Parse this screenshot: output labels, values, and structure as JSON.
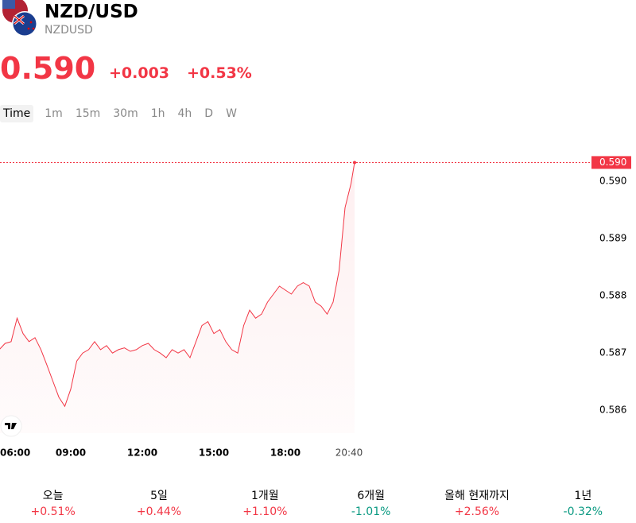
{
  "header": {
    "title": "NZD/USD",
    "symbol": "NZDUSD",
    "price": "0.590",
    "change": "+0.003",
    "change_pct": "+0.53%"
  },
  "tabs": [
    "Time",
    "1m",
    "15m",
    "30m",
    "1h",
    "4h",
    "D",
    "W"
  ],
  "chart_data": {
    "type": "line",
    "x": [
      "06:00",
      "06:15",
      "06:30",
      "06:45",
      "07:00",
      "07:15",
      "07:30",
      "07:45",
      "08:00",
      "08:15",
      "08:30",
      "08:45",
      "09:00",
      "09:15",
      "09:30",
      "09:45",
      "10:00",
      "10:15",
      "10:30",
      "10:45",
      "11:00",
      "11:15",
      "11:30",
      "11:45",
      "12:00",
      "12:15",
      "12:30",
      "12:45",
      "13:00",
      "13:15",
      "13:30",
      "13:45",
      "14:00",
      "14:15",
      "14:30",
      "14:45",
      "15:00",
      "15:15",
      "15:30",
      "15:45",
      "16:00",
      "16:15",
      "16:30",
      "16:45",
      "17:00",
      "17:15",
      "17:30",
      "17:45",
      "18:00",
      "18:15",
      "18:30",
      "18:45",
      "19:00",
      "19:15",
      "19:30",
      "19:45",
      "20:00",
      "20:15",
      "20:30",
      "20:45",
      "20:54"
    ],
    "series": [
      {
        "name": "NZDUSD",
        "color": "#f23645",
        "values": [
          0.58706,
          0.58717,
          0.5872,
          0.58761,
          0.58734,
          0.5872,
          0.58727,
          0.58706,
          0.58679,
          0.58651,
          0.58623,
          0.58607,
          0.58637,
          0.58686,
          0.587,
          0.58706,
          0.5872,
          0.58706,
          0.58713,
          0.587,
          0.58706,
          0.58709,
          0.58703,
          0.58706,
          0.58713,
          0.58717,
          0.58706,
          0.587,
          0.58692,
          0.58706,
          0.587,
          0.58706,
          0.58692,
          0.5872,
          0.58748,
          0.58755,
          0.58734,
          0.58741,
          0.5872,
          0.58706,
          0.587,
          0.58748,
          0.58775,
          0.58761,
          0.58768,
          0.58789,
          0.58803,
          0.58817,
          0.5881,
          0.58803,
          0.58817,
          0.58823,
          0.58817,
          0.58789,
          0.58782,
          0.58768,
          0.58789,
          0.58844,
          0.58954,
          0.58996,
          0.59033
        ]
      }
    ],
    "xlim": [
      "06:00",
      "20:54"
    ],
    "xticks": [
      "06:00",
      "09:00",
      "12:00",
      "15:00",
      "18:00",
      "20:40"
    ],
    "ylim": [
      0.5856,
      0.5906
    ],
    "yticks": [
      0.586,
      0.587,
      0.588,
      0.589,
      {
        "value": 0.59,
        "label": "0.590"
      }
    ],
    "last": {
      "value": 0.59033,
      "label": "0.590"
    }
  },
  "periods": [
    {
      "label": "오늘",
      "change": "+0.51%"
    },
    {
      "label": "5일",
      "change": "+0.44%"
    },
    {
      "label": "1개월",
      "change": "+1.10%"
    },
    {
      "label": "6개월",
      "change": "-1.01%"
    },
    {
      "label": "올해 현재까지",
      "change": "+2.56%"
    },
    {
      "label": "1년",
      "change": "-0.32%"
    }
  ]
}
